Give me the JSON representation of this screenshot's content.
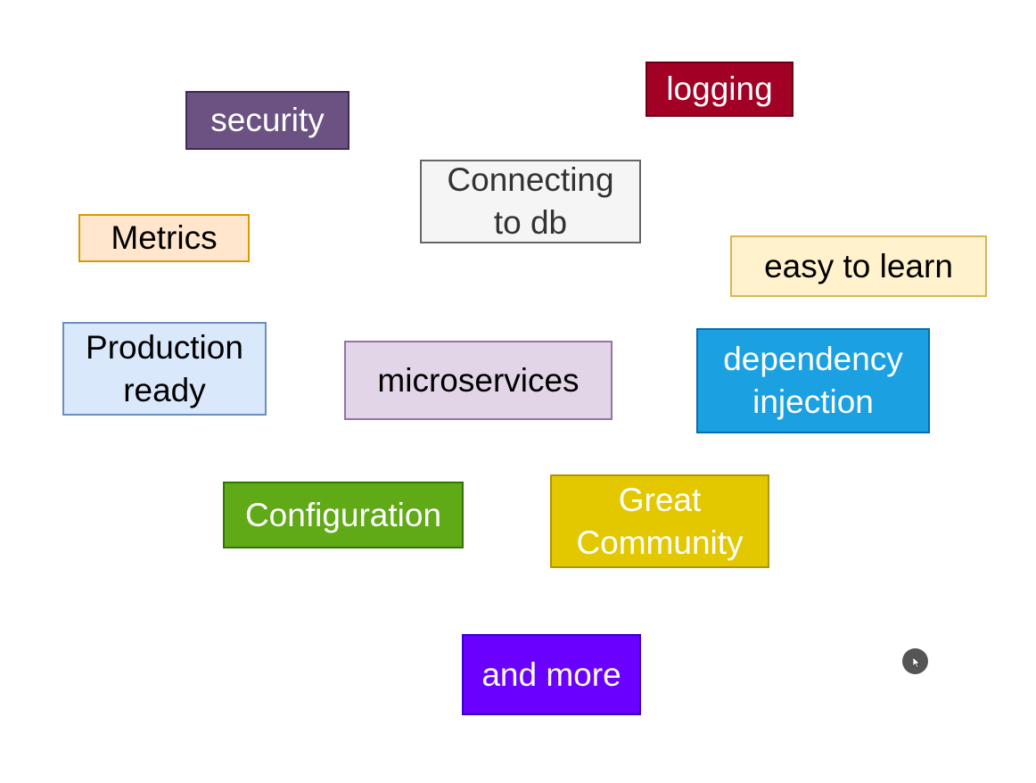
{
  "boxes": {
    "security": {
      "text": "security",
      "bg": "#6b5283",
      "border": "#3d2a55",
      "color": "#ffffff"
    },
    "logging": {
      "text": "logging",
      "bg": "#a20025",
      "border": "#6a0018",
      "color": "#ffffff"
    },
    "connecting": {
      "line1": "Connecting",
      "line2": "to db",
      "bg": "#f5f5f5",
      "border": "#666666",
      "color": "#333333"
    },
    "metrics": {
      "text": "Metrics",
      "bg": "#ffe6cc",
      "border": "#d79b00",
      "color": "#000000"
    },
    "easy": {
      "text": "easy to learn",
      "bg": "#fff2cc",
      "border": "#d6b656",
      "color": "#000000"
    },
    "production": {
      "line1": "Production",
      "line2": "ready",
      "bg": "#dae8fc",
      "border": "#6c8ebf",
      "color": "#000000"
    },
    "microservices": {
      "text": "microservices",
      "bg": "#e1d5e7",
      "border": "#9673a6",
      "color": "#000000"
    },
    "dependency": {
      "line1": "dependency",
      "line2": "injection",
      "bg": "#1ba1e2",
      "border": "#006eaf",
      "color": "#ffffff"
    },
    "configuration": {
      "text": "Configuration",
      "bg": "#60a917",
      "border": "#2d7600",
      "color": "#ffffff"
    },
    "community": {
      "line1": "Great",
      "line2": "Community",
      "bg": "#e3c800",
      "border": "#b09500",
      "color": "#ffffff"
    },
    "more": {
      "text": "and more",
      "bg": "#6a00ff",
      "border": "#3700cc",
      "color": "#ffffff"
    }
  },
  "cursor": {
    "icon": "mouse-pointer-icon",
    "bg": "#555555"
  }
}
